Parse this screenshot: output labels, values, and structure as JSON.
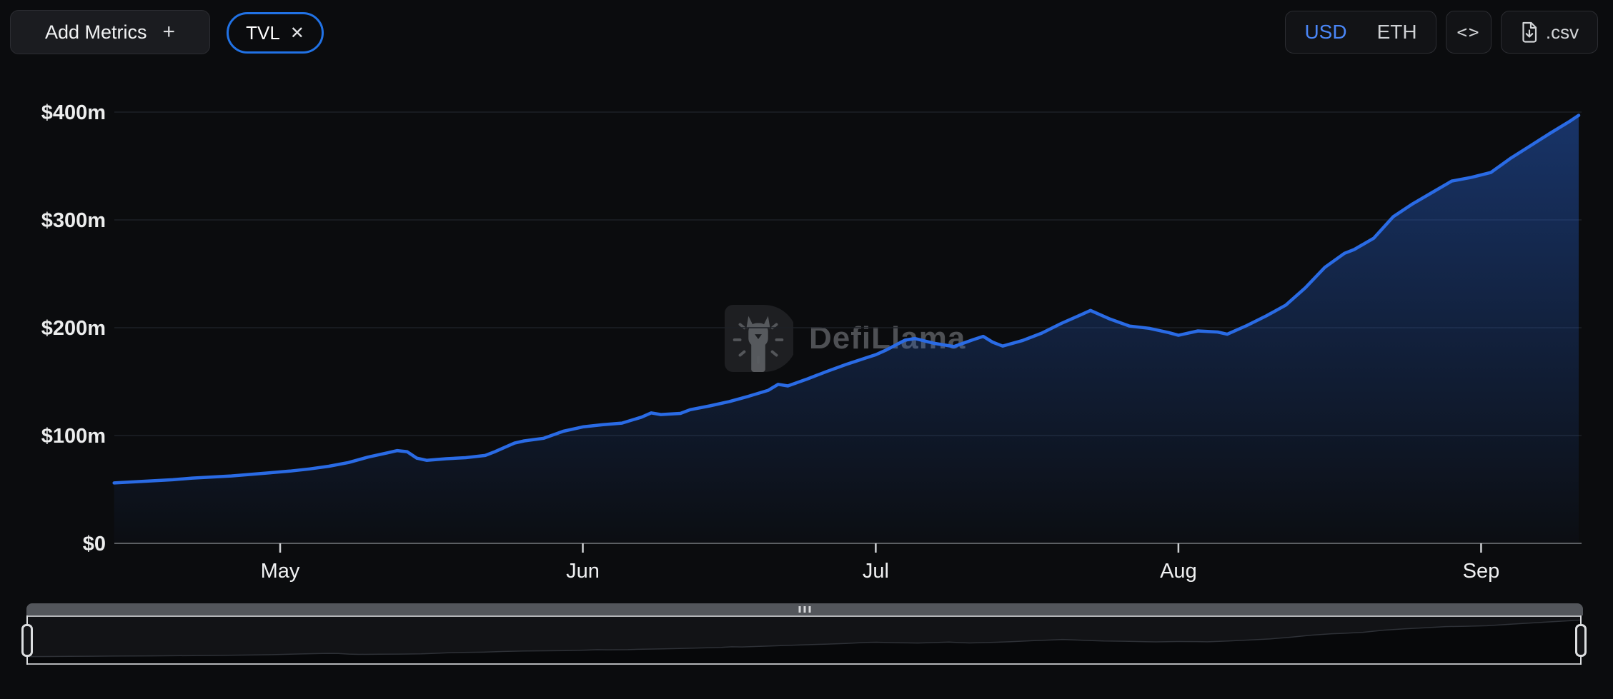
{
  "toolbar": {
    "add_metrics_label": "Add Metrics",
    "add_metrics_plus": "+",
    "metric_pill": {
      "label": "TVL",
      "close_glyph": "✕"
    },
    "currency_toggle": {
      "options": [
        "USD",
        "ETH"
      ],
      "selected": "USD"
    },
    "embed_label": "<>",
    "csv_label": ".csv"
  },
  "watermark": {
    "text": "DefiLlama"
  },
  "colors": {
    "accent_blue": "#2172e5",
    "line_blue": "#2a6be5",
    "selected_currency": "#4a86f7",
    "page_bg": "#0b0c0e",
    "grid": "#1d2026",
    "axis_line": "#5c5f63"
  },
  "chart_data": {
    "type": "area",
    "title": "TVL",
    "unit": "USD millions",
    "ylim": [
      0,
      400
    ],
    "grid": true,
    "legend": false,
    "y_ticks": [
      {
        "label": "$0",
        "value": 0
      },
      {
        "label": "$100m",
        "value": 100
      },
      {
        "label": "$200m",
        "value": 200
      },
      {
        "label": "$300m",
        "value": 300
      },
      {
        "label": "$400m",
        "value": 400
      }
    ],
    "x_ticks": [
      {
        "label": "May",
        "month": "05"
      },
      {
        "label": "Jun",
        "month": "06"
      },
      {
        "label": "Jul",
        "month": "07"
      },
      {
        "label": "Aug",
        "month": "08"
      },
      {
        "label": "Sep",
        "month": "09"
      }
    ],
    "x_range": [
      "04-14",
      "09-11"
    ],
    "series": [
      {
        "name": "TVL",
        "points": [
          [
            "04-14",
            56
          ],
          [
            "04-16",
            57
          ],
          [
            "04-18",
            58
          ],
          [
            "04-20",
            59
          ],
          [
            "04-22",
            60.5
          ],
          [
            "04-24",
            61.5
          ],
          [
            "04-26",
            62.5
          ],
          [
            "04-28",
            64
          ],
          [
            "04-30",
            65.5
          ],
          [
            "05-02",
            67
          ],
          [
            "05-04",
            69
          ],
          [
            "05-06",
            71.5
          ],
          [
            "05-08",
            75
          ],
          [
            "05-10",
            80
          ],
          [
            "05-12",
            84
          ],
          [
            "05-13",
            86
          ],
          [
            "05-14",
            85
          ],
          [
            "05-15",
            79
          ],
          [
            "05-16",
            77
          ],
          [
            "05-18",
            78.5
          ],
          [
            "05-20",
            79.5
          ],
          [
            "05-22",
            81.5
          ],
          [
            "05-23",
            85
          ],
          [
            "05-24",
            89
          ],
          [
            "05-25",
            93
          ],
          [
            "05-26",
            95
          ],
          [
            "05-28",
            97.5
          ],
          [
            "05-30",
            104
          ],
          [
            "06-01",
            108
          ],
          [
            "06-03",
            110
          ],
          [
            "06-05",
            111.5
          ],
          [
            "06-07",
            117
          ],
          [
            "06-08",
            121
          ],
          [
            "06-09",
            119.5
          ],
          [
            "06-11",
            120.5
          ],
          [
            "06-12",
            124
          ],
          [
            "06-14",
            127.5
          ],
          [
            "06-16",
            131.5
          ],
          [
            "06-18",
            136.5
          ],
          [
            "06-20",
            142
          ],
          [
            "06-21",
            147.5
          ],
          [
            "06-22",
            146
          ],
          [
            "06-24",
            152.5
          ],
          [
            "06-26",
            159.5
          ],
          [
            "06-28",
            166
          ],
          [
            "06-30",
            172
          ],
          [
            "07-01",
            175
          ],
          [
            "07-02",
            179
          ],
          [
            "07-04",
            188.5
          ],
          [
            "07-05",
            190
          ],
          [
            "07-07",
            185.5
          ],
          [
            "07-09",
            182.5
          ],
          [
            "07-11",
            189
          ],
          [
            "07-12",
            192
          ],
          [
            "07-13",
            186.5
          ],
          [
            "07-14",
            183
          ],
          [
            "07-16",
            188
          ],
          [
            "07-18",
            195
          ],
          [
            "07-20",
            204
          ],
          [
            "07-22",
            212
          ],
          [
            "07-23",
            216
          ],
          [
            "07-25",
            208
          ],
          [
            "07-27",
            201.5
          ],
          [
            "07-29",
            199.5
          ],
          [
            "07-31",
            195.5
          ],
          [
            "08-01",
            193
          ],
          [
            "08-03",
            197
          ],
          [
            "08-05",
            196
          ],
          [
            "08-06",
            194
          ],
          [
            "08-08",
            202
          ],
          [
            "08-10",
            211
          ],
          [
            "08-12",
            221
          ],
          [
            "08-14",
            237
          ],
          [
            "08-16",
            256
          ],
          [
            "08-18",
            269
          ],
          [
            "08-19",
            272.5
          ],
          [
            "08-21",
            283
          ],
          [
            "08-23",
            303
          ],
          [
            "08-25",
            315
          ],
          [
            "08-27",
            325.5
          ],
          [
            "08-29",
            336
          ],
          [
            "08-31",
            339.5
          ],
          [
            "09-02",
            344
          ],
          [
            "09-04",
            357
          ],
          [
            "09-06",
            368.5
          ],
          [
            "09-08",
            380
          ],
          [
            "09-10",
            391
          ],
          [
            "09-11",
            397
          ]
        ]
      }
    ]
  }
}
